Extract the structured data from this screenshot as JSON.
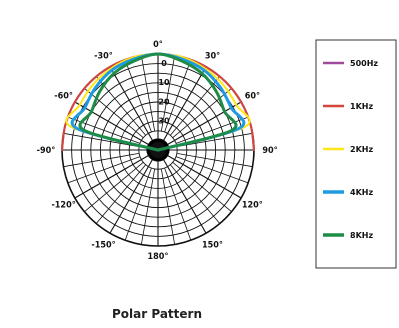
{
  "chart_data": {
    "type": "polar",
    "title": "Polar Pattern",
    "angle_labels": [
      "0°",
      "30°",
      "60°",
      "90°",
      "120°",
      "150°",
      "180°",
      "-150°",
      "-120°",
      "-90°",
      "-60°",
      "-30°"
    ],
    "angle_values": [
      0,
      30,
      60,
      90,
      120,
      150,
      180,
      -150,
      -120,
      -90,
      -60,
      -30
    ],
    "ring_labels": [
      "0",
      "10",
      "20",
      "30"
    ],
    "ring_values_db": [
      0,
      -10,
      -20,
      -30
    ],
    "r_range_db": [
      -50,
      0
    ],
    "grid": true,
    "legend_position": "right",
    "series": [
      {
        "name": "500Hz",
        "color": "#a04a9c",
        "width": 2,
        "theta": [
          -90,
          -75,
          -60,
          -45,
          -30,
          -15,
          0,
          15,
          30,
          45,
          60,
          75,
          90
        ],
        "r_db": [
          0,
          0,
          0,
          0,
          0,
          0,
          0,
          0,
          0,
          0,
          0,
          0,
          0
        ]
      },
      {
        "name": "1KHz",
        "color": "#d2463c",
        "width": 2,
        "theta": [
          -90,
          -75,
          -60,
          -45,
          -30,
          -15,
          0,
          15,
          30,
          45,
          60,
          75,
          90
        ],
        "r_db": [
          0,
          0,
          0,
          0,
          0,
          0,
          0,
          0,
          0,
          0,
          0,
          0,
          0
        ]
      },
      {
        "name": "2KHz",
        "color": "#ffe619",
        "width": 2,
        "theta": [
          -90,
          -75,
          -60,
          -45,
          -30,
          -15,
          0,
          15,
          30,
          45,
          60,
          75,
          90
        ],
        "r_db": [
          -50,
          -3,
          -3,
          -2,
          -1,
          0,
          0,
          0,
          -1,
          -2,
          -3,
          -3,
          -50
        ]
      },
      {
        "name": "4KHz",
        "color": "#1e9be1",
        "width": 3,
        "theta": [
          -90,
          -75,
          -60,
          -45,
          -30,
          -15,
          0,
          15,
          30,
          45,
          60,
          75,
          90
        ],
        "r_db": [
          -50,
          -6,
          -6,
          -4,
          -2,
          -1,
          0,
          -1,
          -2,
          -4,
          -6,
          -6,
          -50
        ]
      },
      {
        "name": "8KHz",
        "color": "#1e8c46",
        "width": 3,
        "theta": [
          -90,
          -75,
          -60,
          -45,
          -30,
          -15,
          0,
          15,
          30,
          45,
          60,
          75,
          90
        ],
        "r_db": [
          -50,
          -10,
          -10,
          -7,
          -4,
          -2,
          0,
          -2,
          -4,
          -7,
          -10,
          -10,
          -50
        ]
      }
    ]
  }
}
